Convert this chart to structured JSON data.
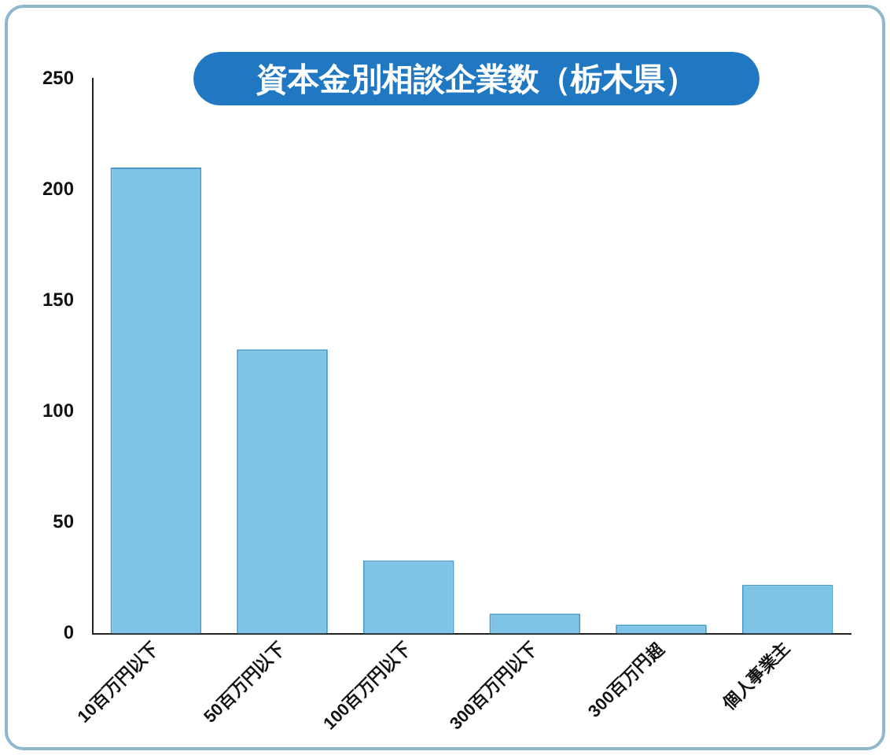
{
  "chart_data": {
    "type": "bar",
    "title": "資本金別相談企業数（栃木県）",
    "categories": [
      "10百万円以下",
      "50百万円以下",
      "100百万円以下",
      "300百万円以下",
      "300百万円超",
      "個人事業主"
    ],
    "values": [
      210,
      128,
      33,
      9,
      4,
      22
    ],
    "color": "#7ec4e6",
    "ylim": [
      0,
      250
    ],
    "yticks": [
      0,
      50,
      100,
      150,
      200,
      250
    ],
    "grid": false,
    "legend": false
  }
}
